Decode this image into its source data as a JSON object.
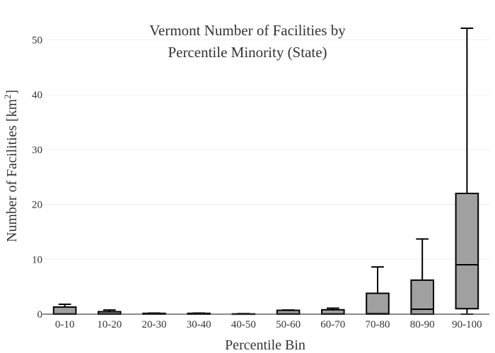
{
  "chart_data": {
    "type": "box",
    "title_lines": [
      "Vermont Number of Facilities by",
      "Percentile Minority (State)"
    ],
    "xlabel": "Percentile Bin",
    "ylabel_main": "Number of Facilities  [km",
    "ylabel_sup": "2",
    "ylabel_tail": "]",
    "ylim": [
      0,
      53
    ],
    "yticks": [
      0,
      10,
      20,
      30,
      40,
      50
    ],
    "grid": true,
    "categories": [
      "0-10",
      "10-20",
      "20-30",
      "30-40",
      "40-50",
      "50-60",
      "60-70",
      "70-80",
      "80-90",
      "90-100"
    ],
    "boxes": [
      {
        "min": 0.0,
        "q1": 0.0,
        "median": 0.05,
        "q3": 1.3,
        "max": 1.8
      },
      {
        "min": 0.0,
        "q1": 0.0,
        "median": 0.05,
        "q3": 0.45,
        "max": 0.75
      },
      {
        "min": 0.0,
        "q1": 0.0,
        "median": 0.0,
        "q3": 0.15,
        "max": 0.2
      },
      {
        "min": 0.0,
        "q1": 0.0,
        "median": 0.0,
        "q3": 0.15,
        "max": 0.2
      },
      {
        "min": 0.0,
        "q1": 0.0,
        "median": 0.0,
        "q3": 0.05,
        "max": 0.1
      },
      {
        "min": 0.0,
        "q1": 0.0,
        "median": 0.05,
        "q3": 0.7,
        "max": 0.75
      },
      {
        "min": 0.0,
        "q1": 0.0,
        "median": 0.05,
        "q3": 0.8,
        "max": 1.1
      },
      {
        "min": 0.0,
        "q1": 0.0,
        "median": 0.1,
        "q3": 3.8,
        "max": 8.6
      },
      {
        "min": 0.0,
        "q1": 0.0,
        "median": 0.9,
        "q3": 6.2,
        "max": 13.7
      },
      {
        "min": 0.0,
        "q1": 1.0,
        "median": 9.0,
        "q3": 22.0,
        "max": 52.1
      }
    ],
    "colors": {
      "box_fill": "#a0a0a0",
      "box_stroke": "#000000",
      "grid": "#eeeeee",
      "text": "#333333"
    }
  }
}
